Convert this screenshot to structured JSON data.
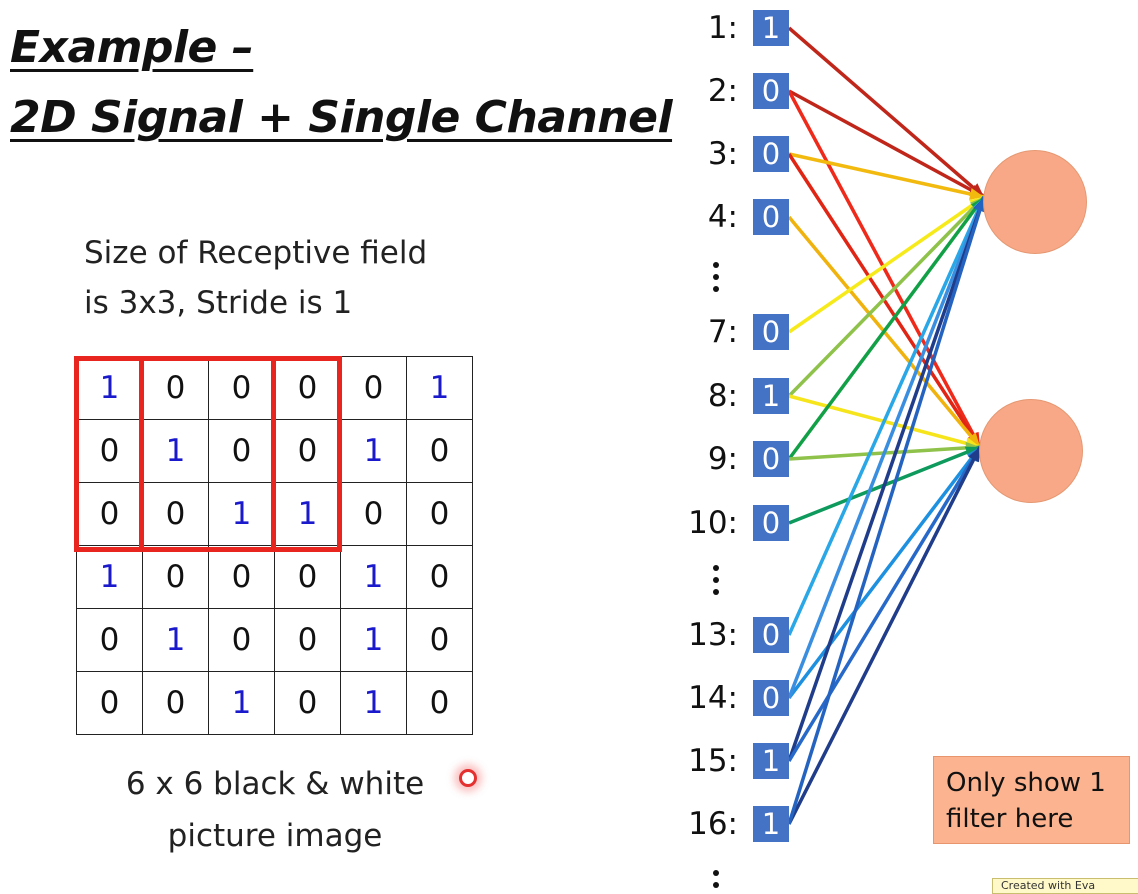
{
  "title": {
    "line1": "Example –",
    "line2": "2D Signal + Single Channel"
  },
  "description": {
    "line1": "Size of Receptive field",
    "line2": "is 3x3, Stride is 1"
  },
  "image_grid": {
    "rows": [
      [
        "1",
        "0",
        "0",
        "0",
        "0",
        "1"
      ],
      [
        "0",
        "1",
        "0",
        "0",
        "1",
        "0"
      ],
      [
        "0",
        "0",
        "1",
        "1",
        "0",
        "0"
      ],
      [
        "1",
        "0",
        "0",
        "0",
        "1",
        "0"
      ],
      [
        "0",
        "1",
        "0",
        "0",
        "1",
        "0"
      ],
      [
        "0",
        "0",
        "1",
        "0",
        "1",
        "0"
      ]
    ],
    "one_color": "#1a1acc",
    "zero_color": "#111111"
  },
  "receptive_field_color": "#e8261f",
  "caption": {
    "line1": "6 x 6 black & white",
    "line2": "picture image"
  },
  "inputs": [
    {
      "label": "1:",
      "value": "1"
    },
    {
      "label": "2:",
      "value": "0"
    },
    {
      "label": "3:",
      "value": "0"
    },
    {
      "label": "4:",
      "value": "0"
    },
    {
      "label": "7:",
      "value": "0"
    },
    {
      "label": "8:",
      "value": "1"
    },
    {
      "label": "9:",
      "value": "0"
    },
    {
      "label": "10:",
      "value": "0"
    },
    {
      "label": "13:",
      "value": "0"
    },
    {
      "label": "14:",
      "value": "0"
    },
    {
      "label": "15:",
      "value": "1"
    },
    {
      "label": "16:",
      "value": "1"
    }
  ],
  "input_box_color": "#4472c4",
  "neuron_color": "#f8a886",
  "note": {
    "line1": "Only show 1",
    "line2": "filter here"
  },
  "watermark": "Created with Eva"
}
